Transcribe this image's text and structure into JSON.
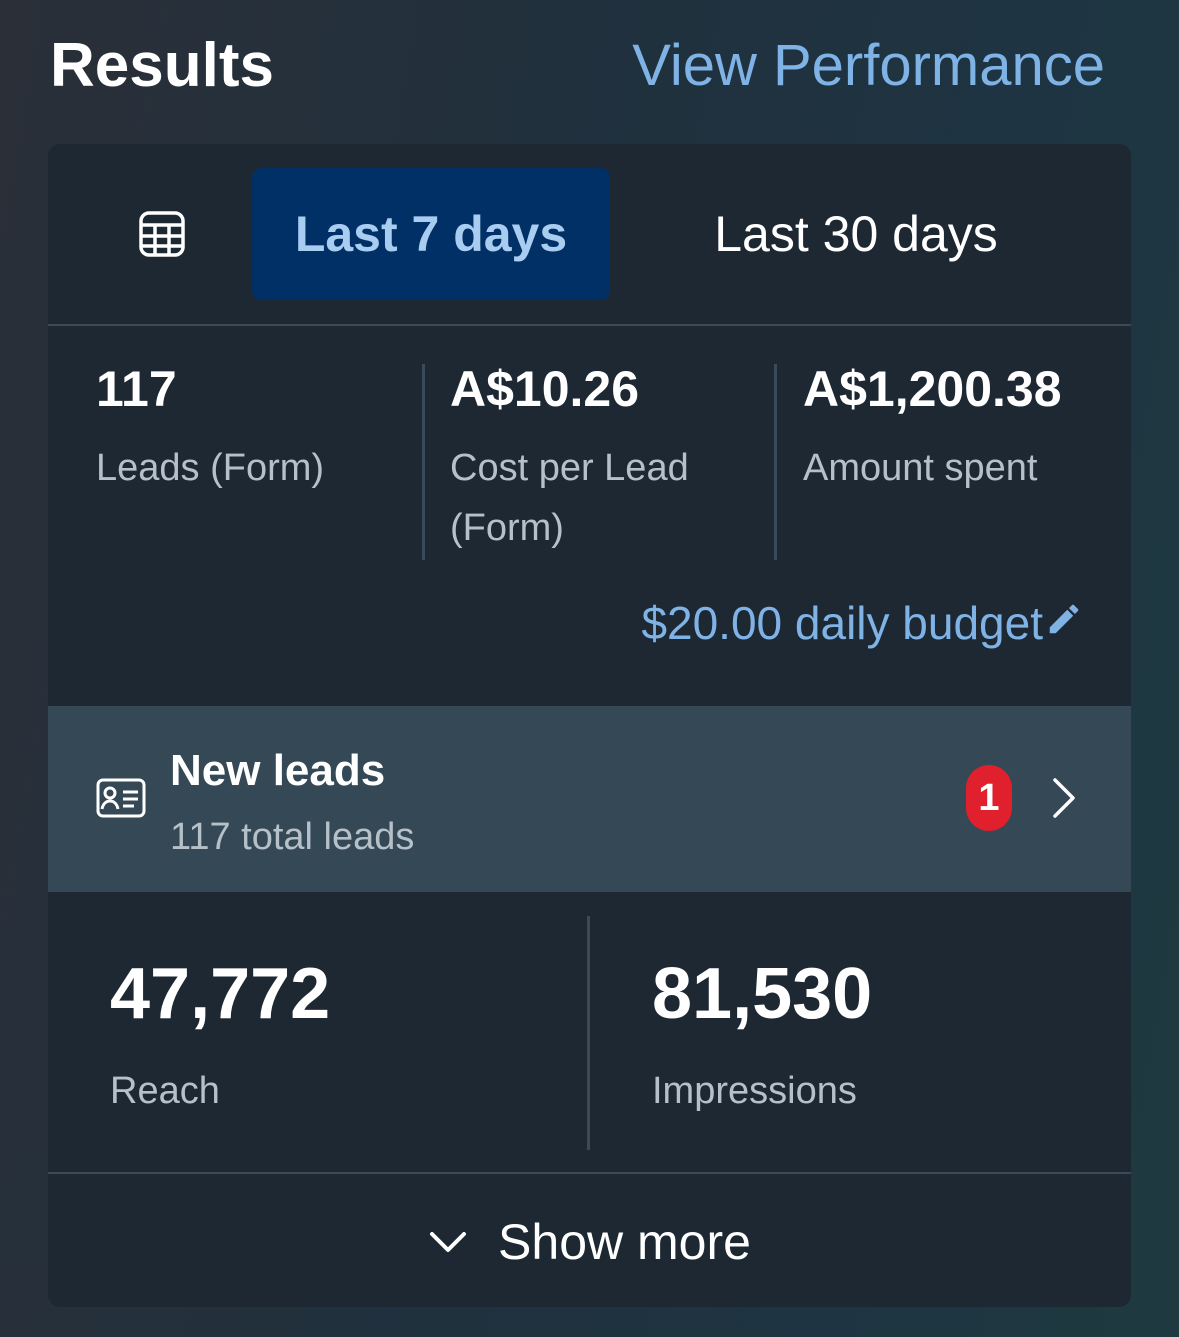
{
  "header": {
    "title": "Results",
    "view_performance": "View Performance"
  },
  "tabs": {
    "icon": "table-icon",
    "items": [
      {
        "label": "Last 7 days",
        "active": true
      },
      {
        "label": "Last 30 days",
        "active": false
      }
    ]
  },
  "metrics": [
    {
      "value": "117",
      "label": "Leads (Form)"
    },
    {
      "value": "A$10.26",
      "label": "Cost per Lead (Form)"
    },
    {
      "value": "A$1,200.38",
      "label": "Amount spent"
    }
  ],
  "budget": {
    "text": "$20.00 daily budget",
    "icon": "pencil-icon"
  },
  "new_leads": {
    "icon": "contact-card-icon",
    "title": "New leads",
    "subtitle": "117 total leads",
    "badge": "1",
    "chevron": "chevron-right-icon"
  },
  "stats": [
    {
      "value": "47,772",
      "label": "Reach"
    },
    {
      "value": "81,530",
      "label": "Impressions"
    }
  ],
  "show_more": {
    "label": "Show more",
    "icon": "chevron-down-icon"
  },
  "colors": {
    "accent_link": "#7fb3e6",
    "active_tab_bg": "#003066",
    "active_tab_text": "#a9ccf1",
    "badge": "#e0202d",
    "card_bg": "#1d2833",
    "leads_row_bg": "#344855"
  }
}
